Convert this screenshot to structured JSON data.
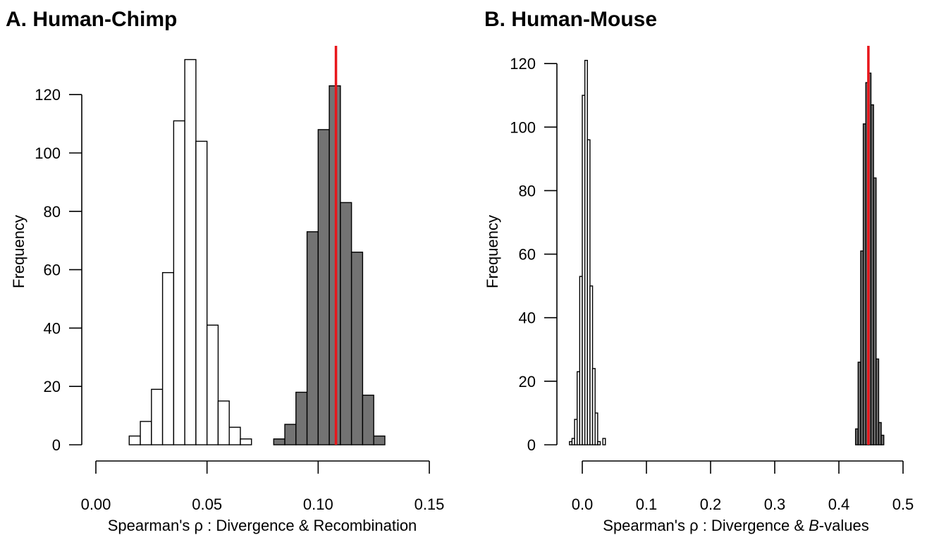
{
  "chart_data": [
    {
      "type": "histogram",
      "title": "A. Human-Chimp",
      "xlabel": "Spearman's ρ : Divergence & Recombination",
      "ylabel": "Frequency",
      "xlim": [
        0.0,
        0.15
      ],
      "ylim": [
        0,
        132
      ],
      "x_ticks": [
        "0.00",
        "0.05",
        "0.10",
        "0.15"
      ],
      "x_tick_values": [
        0.0,
        0.05,
        0.1,
        0.15
      ],
      "y_ticks": [
        "0",
        "20",
        "40",
        "60",
        "80",
        "100",
        "120"
      ],
      "y_tick_values": [
        0,
        20,
        40,
        60,
        80,
        100,
        120
      ],
      "observed_line": {
        "x": 0.108,
        "color": "#e8161b"
      },
      "series": [
        {
          "fill": "#ffffff",
          "bin_width": 0.005,
          "bin_starts": [
            0.015,
            0.02,
            0.025,
            0.03,
            0.035,
            0.04,
            0.045,
            0.05,
            0.055,
            0.06,
            0.065
          ],
          "values": [
            3,
            8,
            19,
            59,
            111,
            132,
            104,
            41,
            15,
            6,
            2
          ]
        },
        {
          "fill": "#737373",
          "bin_width": 0.005,
          "bin_starts": [
            0.08,
            0.085,
            0.09,
            0.095,
            0.1,
            0.105,
            0.11,
            0.115,
            0.12,
            0.125
          ],
          "values": [
            2,
            7,
            18,
            73,
            108,
            123,
            83,
            66,
            17,
            3
          ]
        }
      ]
    },
    {
      "type": "histogram",
      "title": "B. Human-Mouse",
      "xlabel_prefix": "Spearman's ρ : Divergence & ",
      "xlabel_italic": "B",
      "xlabel_suffix": "-values",
      "ylabel": "Frequency",
      "xlim": [
        0.0,
        0.5
      ],
      "ylim": [
        0,
        121
      ],
      "x_ticks": [
        "0.0",
        "0.1",
        "0.2",
        "0.3",
        "0.4",
        "0.5"
      ],
      "x_tick_values": [
        0.0,
        0.1,
        0.2,
        0.3,
        0.4,
        0.5
      ],
      "y_ticks": [
        "0",
        "20",
        "40",
        "60",
        "80",
        "100",
        "120"
      ],
      "y_tick_values": [
        0,
        20,
        40,
        60,
        80,
        100,
        120
      ],
      "observed_line": {
        "x": 0.446,
        "color": "#e8161b"
      },
      "series": [
        {
          "fill": "#ffffff",
          "bin_width": 0.004,
          "bin_starts": [
            -0.02,
            -0.016,
            -0.012,
            -0.008,
            -0.004,
            0.0,
            0.004,
            0.008,
            0.012,
            0.016,
            0.02,
            0.024,
            0.028,
            0.032
          ],
          "values": [
            1,
            2,
            8,
            23,
            53,
            110,
            121,
            96,
            50,
            24,
            10,
            1,
            0,
            2
          ]
        },
        {
          "fill": "#737373",
          "bin_width": 0.004,
          "bin_starts": [
            0.426,
            0.43,
            0.434,
            0.438,
            0.442,
            0.446,
            0.45,
            0.454,
            0.458,
            0.462,
            0.466
          ],
          "values": [
            5,
            26,
            61,
            101,
            114,
            117,
            107,
            84,
            27,
            7,
            3
          ]
        }
      ]
    }
  ]
}
